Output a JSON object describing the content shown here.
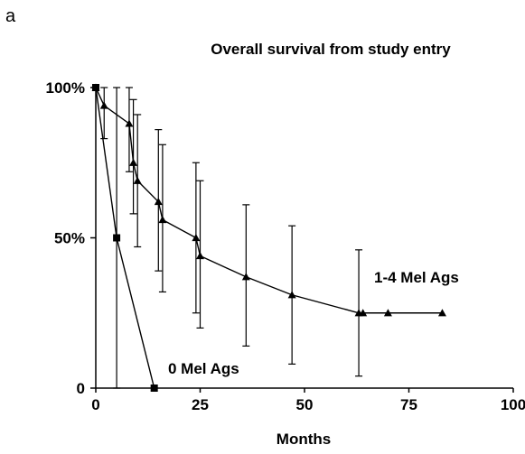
{
  "panel_label": "a",
  "chart_data": {
    "type": "line",
    "title": "Overall survival from study entry",
    "xlabel": "Months",
    "ylabel": "",
    "xlim": [
      0,
      100
    ],
    "ylim": [
      0,
      100
    ],
    "x_ticks": [
      0,
      25,
      50,
      75,
      100
    ],
    "y_ticks": [
      {
        "value": 0,
        "label": "0"
      },
      {
        "value": 50,
        "label": "50%"
      },
      {
        "value": 100,
        "label": "100%"
      }
    ],
    "grid": false,
    "legend": "none",
    "series": [
      {
        "name": "1-4 Mel Ags",
        "marker": "triangle",
        "points": [
          {
            "x": 0,
            "y": 100
          },
          {
            "x": 2,
            "y": 94,
            "lo": 83,
            "hi": 100
          },
          {
            "x": 8,
            "y": 88,
            "lo": 72,
            "hi": 100
          },
          {
            "x": 9,
            "y": 75,
            "lo": 58,
            "hi": 96
          },
          {
            "x": 10,
            "y": 69,
            "lo": 47,
            "hi": 91
          },
          {
            "x": 15,
            "y": 62,
            "lo": 39,
            "hi": 86
          },
          {
            "x": 16,
            "y": 56,
            "lo": 32,
            "hi": 81
          },
          {
            "x": 24,
            "y": 50,
            "lo": 25,
            "hi": 75
          },
          {
            "x": 25,
            "y": 44,
            "lo": 20,
            "hi": 69
          },
          {
            "x": 36,
            "y": 37,
            "lo": 14,
            "hi": 61
          },
          {
            "x": 47,
            "y": 31,
            "lo": 8,
            "hi": 54
          },
          {
            "x": 63,
            "y": 25,
            "lo": 4,
            "hi": 46
          },
          {
            "x": 64,
            "y": 25
          },
          {
            "x": 70,
            "y": 25
          },
          {
            "x": 83,
            "y": 25
          }
        ]
      },
      {
        "name": "0 Mel Ags",
        "marker": "square",
        "points": [
          {
            "x": 0,
            "y": 100
          },
          {
            "x": 5,
            "y": 50,
            "lo": 0,
            "hi": 100
          },
          {
            "x": 14,
            "y": 0
          }
        ]
      }
    ]
  }
}
